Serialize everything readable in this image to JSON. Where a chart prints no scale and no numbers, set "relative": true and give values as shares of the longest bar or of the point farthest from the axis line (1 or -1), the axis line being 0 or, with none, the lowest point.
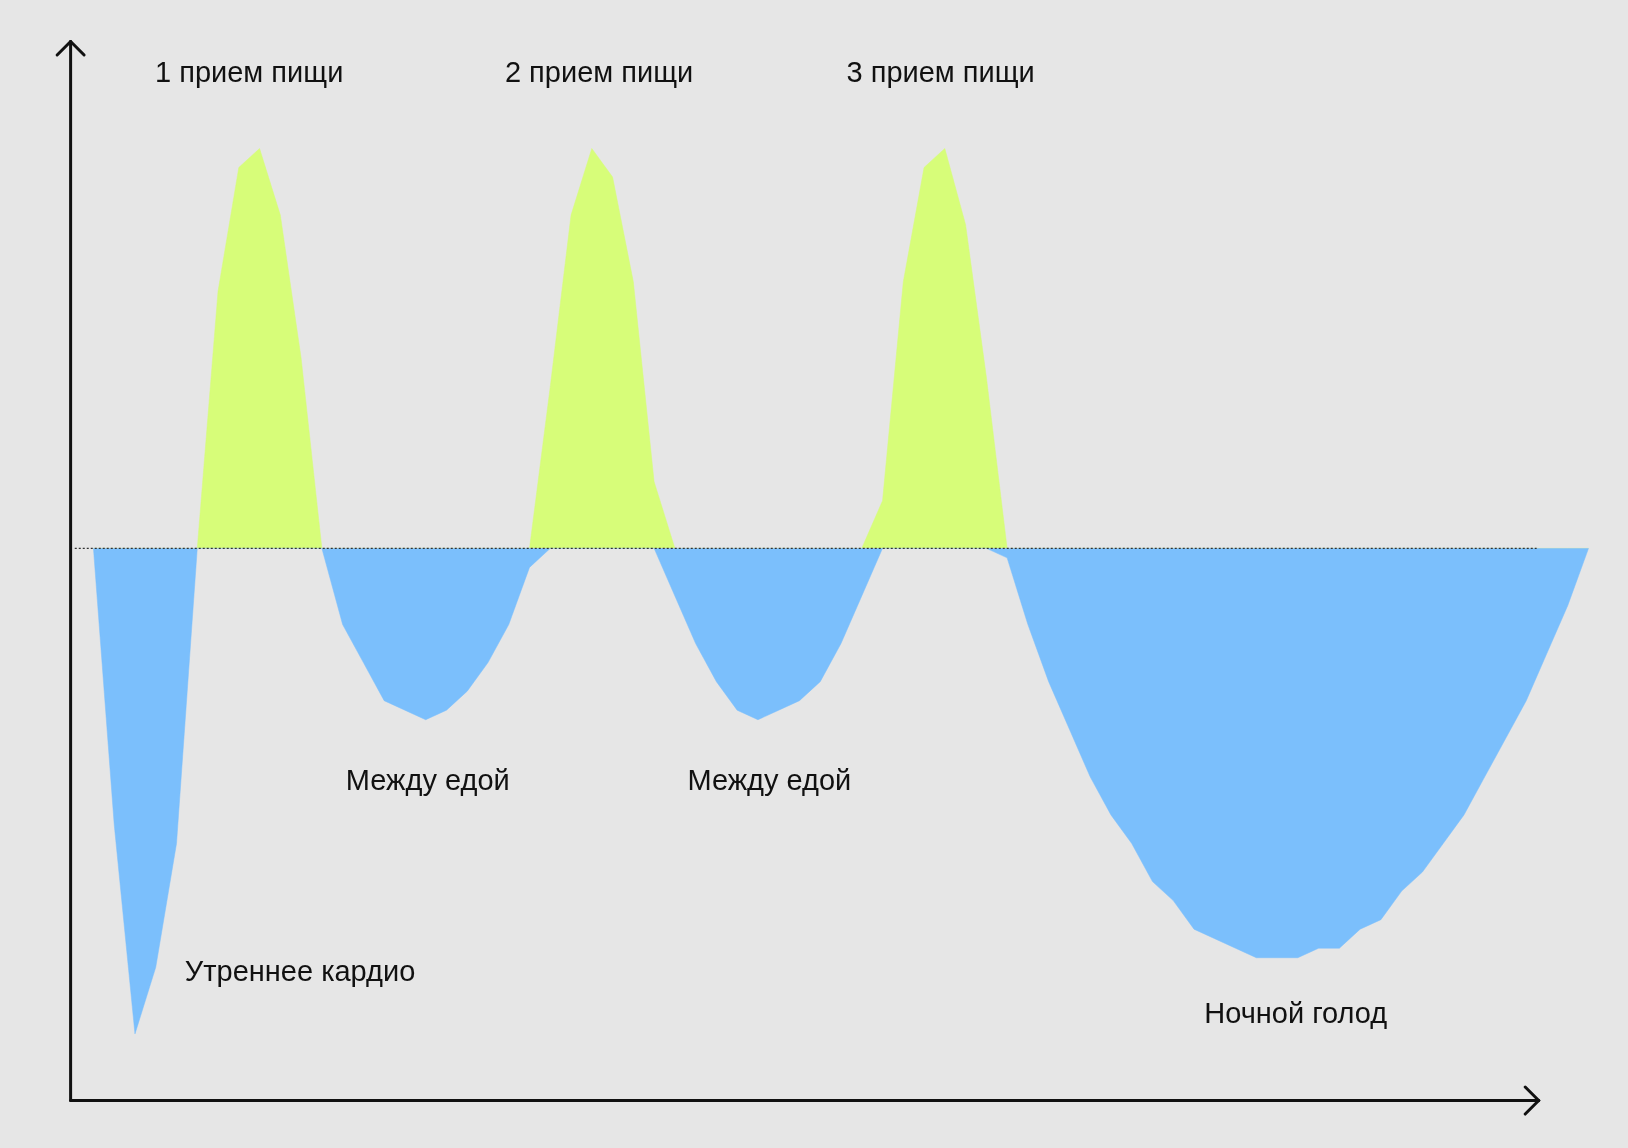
{
  "chart_data": {
    "type": "area",
    "relative": true,
    "categories": [
      null,
      null,
      null,
      null,
      null,
      null,
      null,
      null,
      null,
      null,
      null,
      null,
      null,
      null,
      null,
      null,
      null,
      null,
      null,
      null,
      null,
      null,
      null,
      null,
      null,
      null,
      null,
      null,
      null,
      null,
      null,
      null,
      null,
      null,
      null,
      null,
      null,
      null,
      null,
      null,
      null,
      null,
      null,
      null,
      null,
      null,
      null,
      null,
      null,
      null,
      null,
      null,
      null,
      null,
      null,
      null,
      null,
      null,
      null,
      null,
      null,
      null,
      null,
      null,
      null,
      null,
      null,
      null,
      null,
      null,
      null,
      null,
      null
    ],
    "series": [
      {
        "color": "#d7fd79",
        "values": [
          0.58,
          0.58,
          0.58,
          0.58,
          0.58,
          0.58,
          0.85,
          0.98,
          1.0,
          0.93,
          0.78,
          0.58,
          0.58,
          0.58,
          0.58,
          0.58,
          0.58,
          0.58,
          0.58,
          0.58,
          0.58,
          0.58,
          0.75,
          0.93,
          1.0,
          0.97,
          0.86,
          0.65,
          0.58,
          0.58,
          0.58,
          0.58,
          0.58,
          0.58,
          0.58,
          0.58,
          0.58,
          0.58,
          0.63,
          0.86,
          0.98,
          1.0,
          0.92,
          0.76,
          0.58,
          0.58,
          0.58,
          0.58,
          0.58,
          0.58,
          0.58,
          0.58,
          0.58,
          0.58,
          0.58,
          0.58,
          0.58,
          0.58,
          0.58,
          0.58,
          0.58,
          0.58,
          0.58,
          0.58,
          0.58,
          0.58,
          0.58,
          0.58,
          0.58,
          0.58,
          0.58,
          0.58,
          0.58
        ]
      },
      {
        "color": "#7bbffc",
        "values": [
          0.58,
          0.29,
          0.07,
          0.14,
          0.27,
          0.58,
          0.58,
          0.58,
          0.58,
          0.58,
          0.58,
          0.58,
          0.5,
          0.46,
          0.42,
          0.41,
          0.4,
          0.41,
          0.43,
          0.46,
          0.5,
          0.56,
          0.58,
          0.58,
          0.58,
          0.58,
          0.58,
          0.58,
          0.53,
          0.48,
          0.44,
          0.41,
          0.4,
          0.41,
          0.42,
          0.44,
          0.48,
          0.53,
          0.58,
          0.58,
          0.58,
          0.58,
          0.58,
          0.58,
          0.57,
          0.5,
          0.44,
          0.39,
          0.34,
          0.3,
          0.27,
          0.23,
          0.21,
          0.18,
          0.17,
          0.16,
          0.15,
          0.15,
          0.15,
          0.16,
          0.16,
          0.18,
          0.19,
          0.22,
          0.24,
          0.27,
          0.3,
          0.34,
          0.38,
          0.42,
          0.47,
          0.52,
          0.58
        ]
      }
    ],
    "ref_lines": [
      {
        "axis": "y",
        "value": 0.58,
        "line_style": "dotted",
        "color": "#333333"
      }
    ],
    "annotations": [
      "1 прием пищи",
      "2 прием пищи",
      "3 прием пищи",
      "Между едой",
      "Между едой",
      "Утреннее кардио",
      "Ночной голод"
    ]
  }
}
